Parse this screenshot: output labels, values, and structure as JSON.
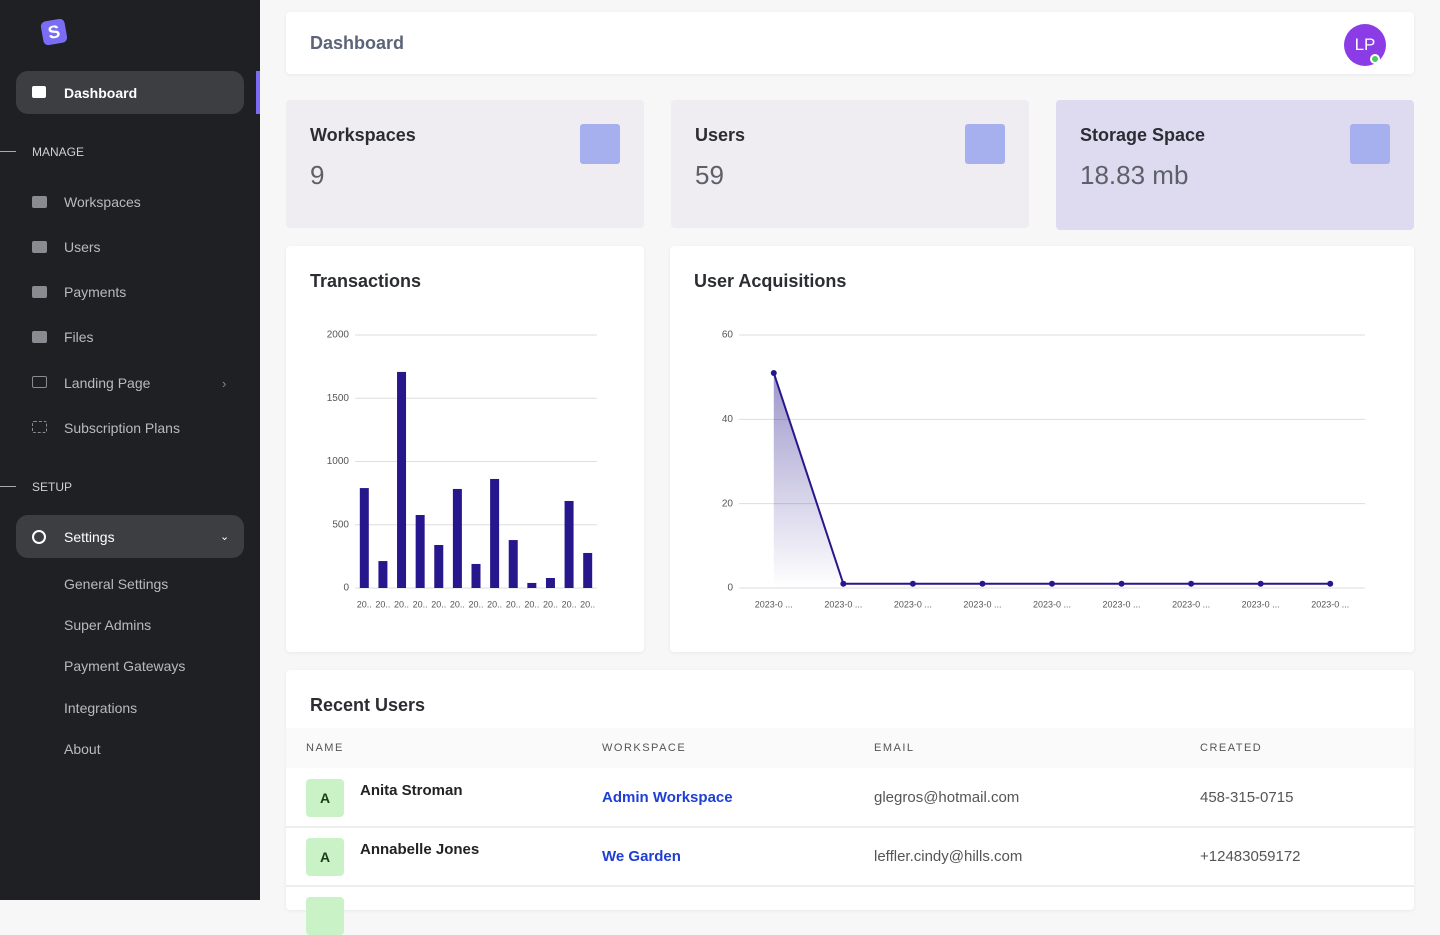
{
  "sidebar": {
    "items": [
      "Dashboard"
    ],
    "manage": {
      "heading": "MANAGE",
      "items": [
        "Workspaces",
        "Users",
        "Payments",
        "Files",
        "Landing Page",
        "Subscription Plans"
      ]
    },
    "setup": {
      "heading": "SETUP",
      "settings": "Settings",
      "items": [
        "General Settings",
        "Super Admins",
        "Payment Gateways",
        "Integrations",
        "About"
      ]
    }
  },
  "header": {
    "title": "Dashboard",
    "avatar": "LP"
  },
  "stats": [
    {
      "label": "Workspaces",
      "value": "9"
    },
    {
      "label": "Users",
      "value": "59"
    },
    {
      "label": "Storage Space",
      "value": "18.83 mb"
    }
  ],
  "charts": [
    {
      "type": "bar",
      "title": "Transactions",
      "categories": [
        "20..",
        "20..",
        "20..",
        "20..",
        "20..",
        "20..",
        "20..",
        "20..",
        "20..",
        "20..",
        "20..",
        "20..",
        "20.."
      ],
      "values": [
        790,
        213,
        1708,
        577,
        340,
        783,
        190,
        862,
        379,
        40,
        79,
        688,
        277
      ],
      "color": "#26178c",
      "ylim": [
        0,
        2000
      ],
      "yticks": [
        0,
        500,
        1000,
        1500,
        2000
      ],
      "grid": true
    },
    {
      "type": "line",
      "title": "User Acquisitions",
      "categories": [
        "2023-0 ...",
        "2023-0 ...",
        "2023-0 ...",
        "2023-0 ...",
        "2023-0 ...",
        "2023-0 ...",
        "2023-0 ...",
        "2023-0 ...",
        "2023-0 ..."
      ],
      "values": [
        51,
        1,
        1,
        1,
        1,
        1,
        1,
        1,
        1
      ],
      "color": "#26178c",
      "ylim": [
        0,
        60
      ],
      "yticks": [
        0,
        20,
        40,
        60
      ],
      "grid": true
    }
  ],
  "table": {
    "title": "Recent Users",
    "columns": [
      "NAME",
      "WORKSPACE",
      "EMAIL",
      "CREATED"
    ],
    "rows": [
      [
        "A",
        "Anita Stroman",
        "Admin Workspace",
        "glegros@hotmail.com",
        "458-315-0715"
      ],
      [
        "A",
        "Annabelle Jones",
        "We Garden",
        "leffler.cindy@hills.com",
        "+12483059172"
      ]
    ]
  }
}
